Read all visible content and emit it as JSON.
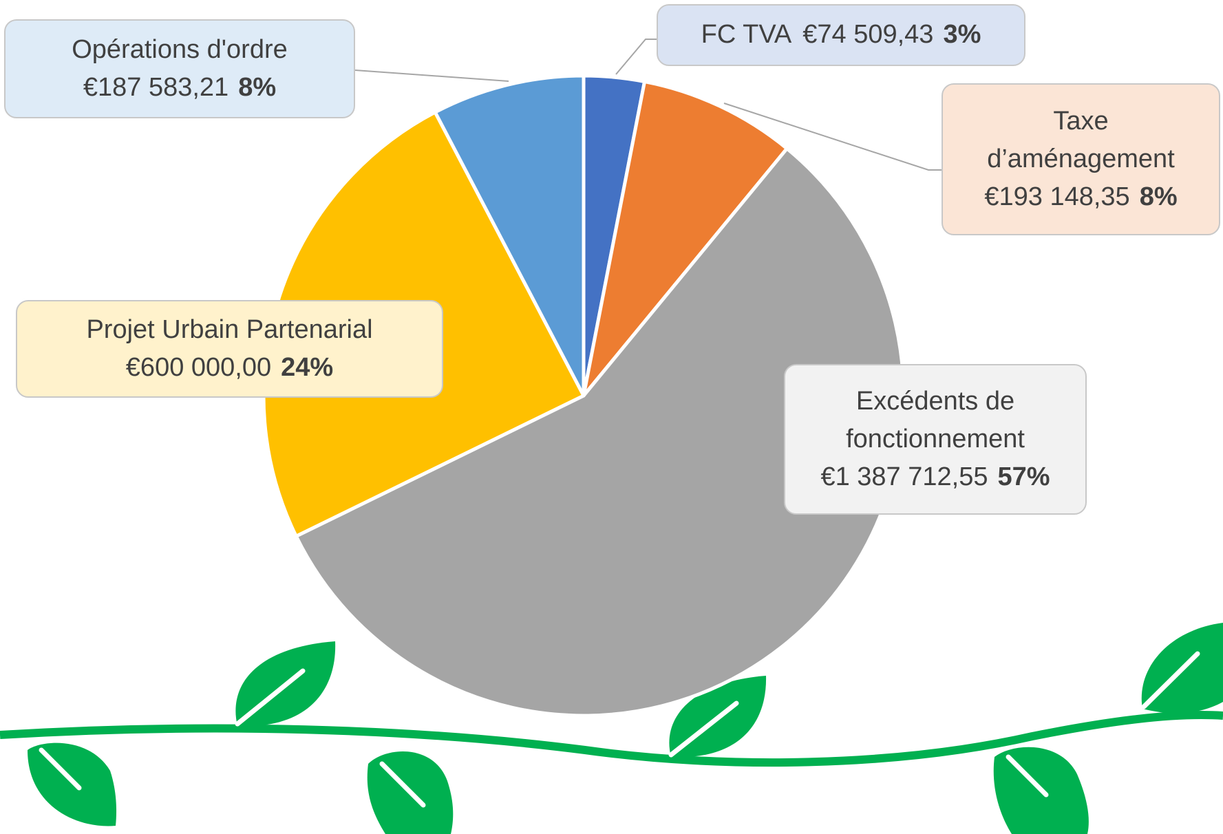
{
  "chart_data": {
    "type": "pie",
    "categories": [
      "FC TVA",
      "Taxe d’aménagement",
      "Excédents de fonctionnement",
      "Projet Urbain Partenarial",
      "Opérations d'ordre"
    ],
    "values": [
      74509.43,
      193148.35,
      1387712.55,
      600000.0,
      187583.21
    ],
    "value_labels": [
      "€74 509,43",
      "€193 148,35",
      "€1 387 712,55",
      "€600 000,00",
      "€187 583,21"
    ],
    "percent_labels": [
      "3%",
      "8%",
      "57%",
      "24%",
      "8%"
    ],
    "colors": [
      "#4472c4",
      "#ed7d31",
      "#a5a5a5",
      "#ffc000",
      "#5b9bd5"
    ]
  }
}
